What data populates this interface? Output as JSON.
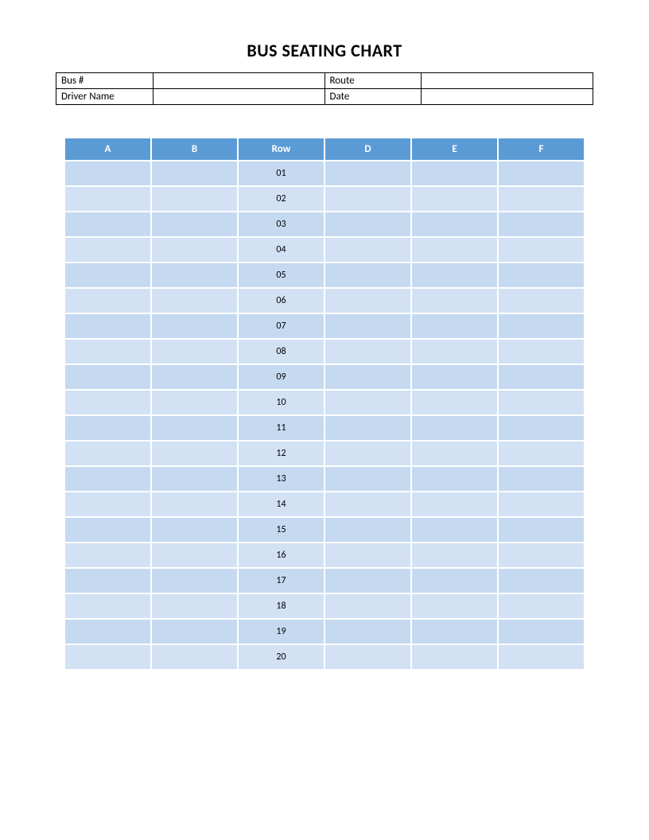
{
  "title": "BUS SEATING CHART",
  "info": {
    "bus_label": "Bus #",
    "bus_value": "",
    "route_label": "Route",
    "route_value": "",
    "driver_label": "Driver Name",
    "driver_value": "",
    "date_label": "Date",
    "date_value": ""
  },
  "seating": {
    "headers": [
      "A",
      "B",
      "Row",
      "D",
      "E",
      "F"
    ],
    "rows": [
      "01",
      "02",
      "03",
      "04",
      "05",
      "06",
      "07",
      "08",
      "09",
      "10",
      "11",
      "12",
      "13",
      "14",
      "15",
      "16",
      "17",
      "18",
      "19",
      "20"
    ],
    "header_bg": "#5b9bd5",
    "header_fg": "#ffffff",
    "cell_bg_odd": "#c5d9f1",
    "cell_bg_even": "#d2e1f4",
    "border_spacing": 2
  }
}
